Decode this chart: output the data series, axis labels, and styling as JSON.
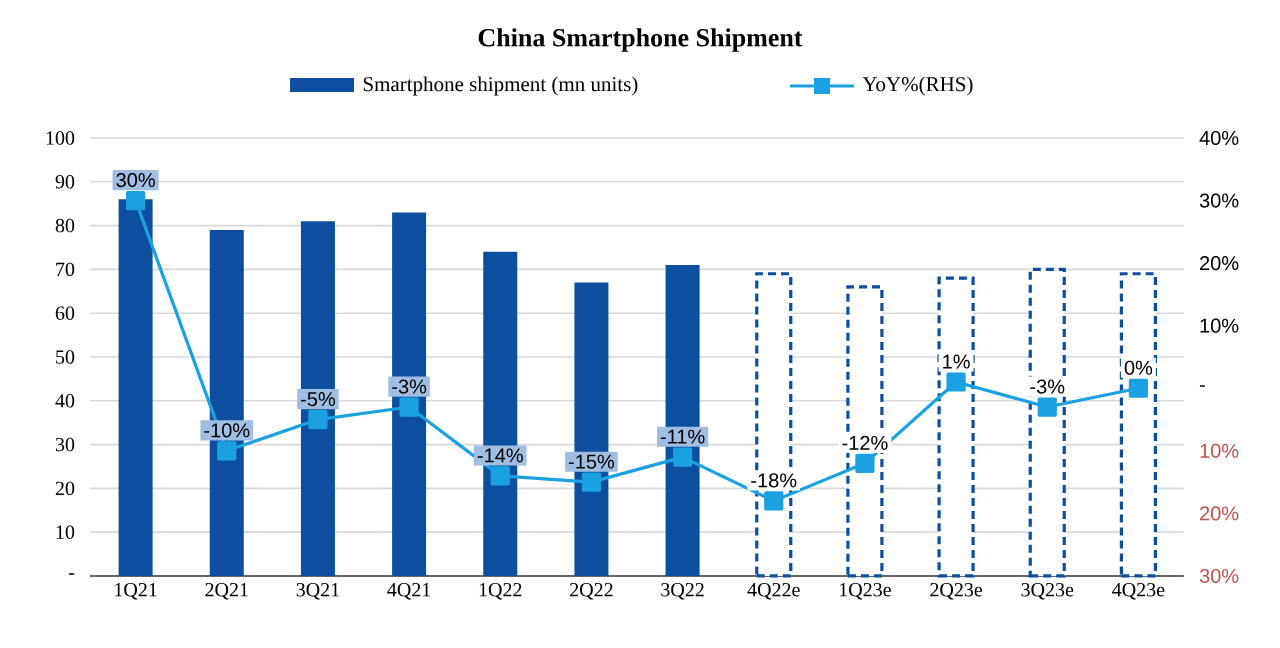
{
  "chart_data": {
    "type": "bar",
    "title": "China Smartphone Shipment",
    "categories": [
      "1Q21",
      "2Q21",
      "3Q21",
      "4Q21",
      "1Q22",
      "2Q22",
      "3Q22",
      "4Q22e",
      "1Q23e",
      "2Q23e",
      "3Q23e",
      "4Q23e"
    ],
    "series": [
      {
        "name": "Smartphone shipment (mn units)",
        "color": "#0b4f9e",
        "values": [
          86,
          79,
          81,
          83,
          74,
          67,
          71,
          null,
          null,
          null,
          null,
          null
        ]
      },
      {
        "color": "#0b4f9e",
        "line_style": "dashed",
        "values": [
          null,
          null,
          null,
          null,
          null,
          null,
          null,
          69,
          66,
          68,
          70,
          69
        ]
      },
      {
        "name": "YoY%(RHS)",
        "type": "line",
        "axis": "y2",
        "color": "#1ba1e2",
        "values": [
          30,
          -10,
          -5,
          -3,
          -14,
          -15,
          -11,
          -18,
          -12,
          1,
          -3,
          0
        ],
        "value_labels": [
          "30%",
          "-10%",
          "-5%",
          "-3%",
          "-14%",
          "-15%",
          "-11%",
          "-18%",
          "-12%",
          "1%",
          "-3%",
          "0%"
        ]
      }
    ],
    "ylim": [
      0,
      100
    ],
    "yticks": [
      {
        "value": 0,
        "label": "-"
      },
      10,
      20,
      30,
      40,
      50,
      60,
      70,
      80,
      90,
      100
    ],
    "y2lim": [
      -30,
      40
    ],
    "y2ticks": [
      {
        "value": -30,
        "label": "30%"
      },
      {
        "value": -20,
        "label": "20%"
      },
      {
        "value": -10,
        "label": "10%"
      },
      {
        "value": 0,
        "label": "-"
      },
      {
        "value": 10,
        "label": "10%"
      },
      {
        "value": 20,
        "label": "20%"
      },
      {
        "value": 30,
        "label": "30%"
      },
      {
        "value": 40,
        "label": "40%"
      }
    ],
    "grid": "y",
    "legend": "top",
    "marker": "square"
  }
}
